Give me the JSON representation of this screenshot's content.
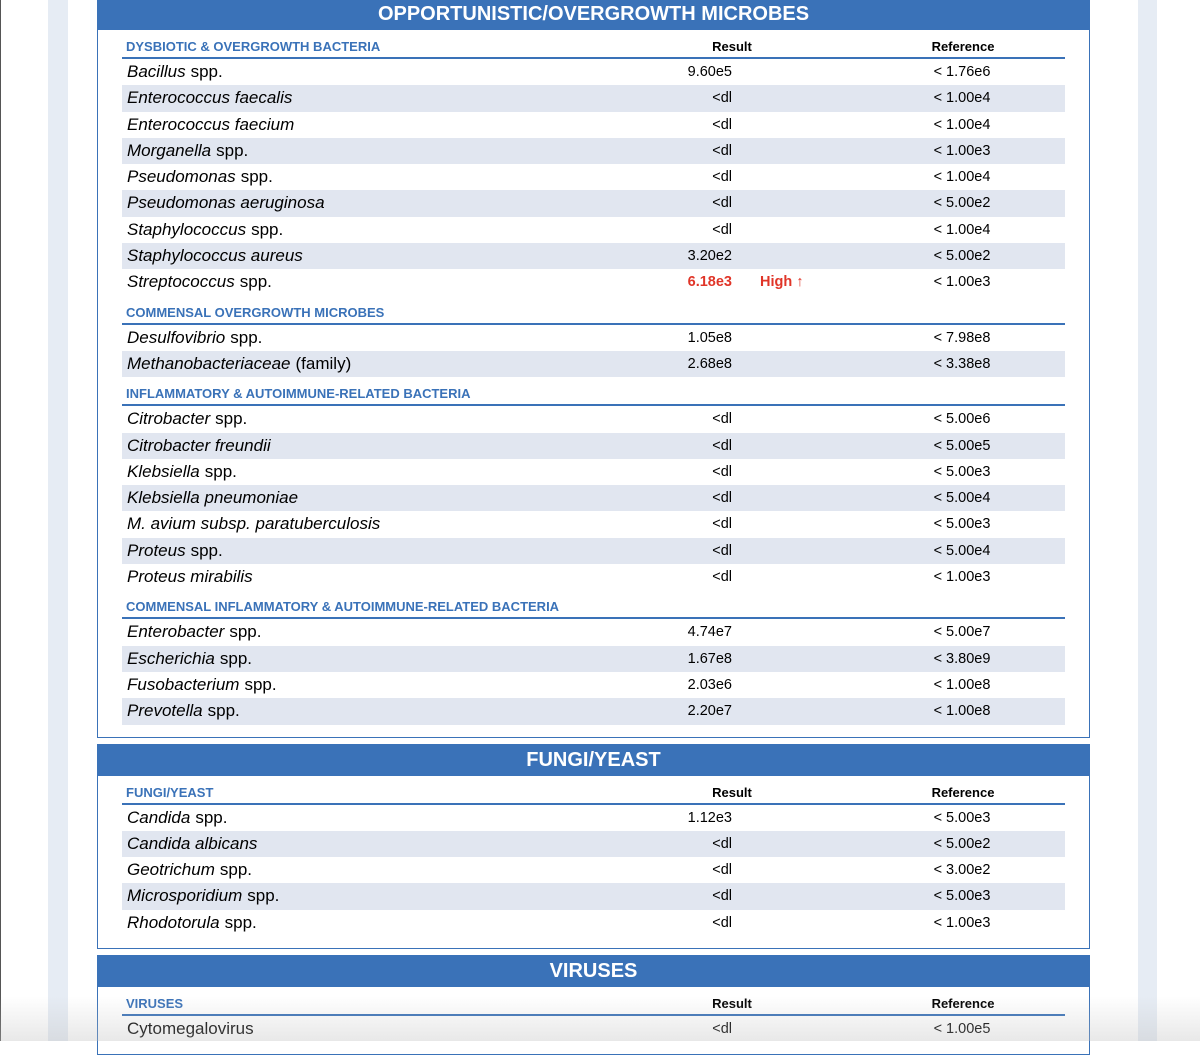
{
  "sections": [
    {
      "title": "OPPORTUNISTIC/OVERGROWTH MICROBES",
      "groups": [
        {
          "heading": "DYSBIOTIC & OVERGROWTH BACTERIA",
          "result_label": "Result",
          "reference_label": "Reference",
          "rows": [
            {
              "name": [
                {
                  "text": "Bacillus",
                  "italic": true
                },
                {
                  "text": "spp.",
                  "italic": false
                }
              ],
              "result": "9.60e5",
              "reference": "< 1.76e6"
            },
            {
              "name": [
                {
                  "text": "Enterococcus faecalis",
                  "italic": true
                }
              ],
              "result": "<dl",
              "reference": "< 1.00e4"
            },
            {
              "name": [
                {
                  "text": "Enterococcus faecium",
                  "italic": true
                }
              ],
              "result": "<dl",
              "reference": "< 1.00e4"
            },
            {
              "name": [
                {
                  "text": "Morganella",
                  "italic": true
                },
                {
                  "text": "spp.",
                  "italic": false
                }
              ],
              "result": "<dl",
              "reference": "< 1.00e3"
            },
            {
              "name": [
                {
                  "text": "Pseudomonas",
                  "italic": true
                },
                {
                  "text": "spp.",
                  "italic": false
                }
              ],
              "result": "<dl",
              "reference": "< 1.00e4"
            },
            {
              "name": [
                {
                  "text": "Pseudomonas aeruginosa",
                  "italic": true
                }
              ],
              "result": "<dl",
              "reference": "< 5.00e2"
            },
            {
              "name": [
                {
                  "text": "Staphylococcus",
                  "italic": true
                },
                {
                  "text": "spp.",
                  "italic": false
                }
              ],
              "result": "<dl",
              "reference": "< 1.00e4"
            },
            {
              "name": [
                {
                  "text": "Staphylococcus aureus",
                  "italic": true
                }
              ],
              "result": "3.20e2",
              "reference": "< 5.00e2"
            },
            {
              "name": [
                {
                  "text": "Streptococcus",
                  "italic": true
                },
                {
                  "text": "spp.",
                  "italic": false
                }
              ],
              "result": "6.18e3",
              "flag": "High ↑",
              "reference": "< 1.00e3"
            }
          ]
        },
        {
          "heading": "COMMENSAL OVERGROWTH MICROBES",
          "rows": [
            {
              "name": [
                {
                  "text": "Desulfovibrio",
                  "italic": true
                },
                {
                  "text": "spp.",
                  "italic": false
                }
              ],
              "result": "1.05e8",
              "reference": "< 7.98e8"
            },
            {
              "name": [
                {
                  "text": "Methanobacteriaceae",
                  "italic": true
                },
                {
                  "text": "(family)",
                  "italic": false
                }
              ],
              "result": "2.68e8",
              "reference": "< 3.38e8"
            }
          ]
        },
        {
          "heading": "INFLAMMATORY & AUTOIMMUNE-RELATED BACTERIA",
          "rows": [
            {
              "name": [
                {
                  "text": "Citrobacter",
                  "italic": true
                },
                {
                  "text": "spp.",
                  "italic": false
                }
              ],
              "result": "<dl",
              "reference": "< 5.00e6"
            },
            {
              "name": [
                {
                  "text": "Citrobacter freundii",
                  "italic": true
                }
              ],
              "result": "<dl",
              "reference": "< 5.00e5"
            },
            {
              "name": [
                {
                  "text": "Klebsiella",
                  "italic": true
                },
                {
                  "text": "spp.",
                  "italic": false
                }
              ],
              "result": "<dl",
              "reference": "< 5.00e3"
            },
            {
              "name": [
                {
                  "text": "Klebsiella pneumoniae",
                  "italic": true
                }
              ],
              "result": "<dl",
              "reference": "< 5.00e4"
            },
            {
              "name": [
                {
                  "text": "M. avium subsp. paratuberculosis",
                  "italic": true
                }
              ],
              "result": "<dl",
              "reference": "< 5.00e3"
            },
            {
              "name": [
                {
                  "text": "Proteus",
                  "italic": true
                },
                {
                  "text": "spp.",
                  "italic": false
                }
              ],
              "result": "<dl",
              "reference": "< 5.00e4"
            },
            {
              "name": [
                {
                  "text": "Proteus mirabilis",
                  "italic": true
                }
              ],
              "result": "<dl",
              "reference": "< 1.00e3"
            }
          ]
        },
        {
          "heading": "COMMENSAL INFLAMMATORY & AUTOIMMUNE-RELATED BACTERIA",
          "rows": [
            {
              "name": [
                {
                  "text": "Enterobacter",
                  "italic": true
                },
                {
                  "text": "spp.",
                  "italic": false
                }
              ],
              "result": "4.74e7",
              "reference": "< 5.00e7"
            },
            {
              "name": [
                {
                  "text": "Escherichia",
                  "italic": true
                },
                {
                  "text": "spp.",
                  "italic": false
                }
              ],
              "result": "1.67e8",
              "reference": "< 3.80e9"
            },
            {
              "name": [
                {
                  "text": "Fusobacterium",
                  "italic": true
                },
                {
                  "text": "spp.",
                  "italic": false
                }
              ],
              "result": "2.03e6",
              "reference": "< 1.00e8"
            },
            {
              "name": [
                {
                  "text": "Prevotella",
                  "italic": true
                },
                {
                  "text": "spp.",
                  "italic": false
                }
              ],
              "result": "2.20e7",
              "reference": "< 1.00e8"
            }
          ]
        }
      ]
    },
    {
      "title": "FUNGI/YEAST",
      "groups": [
        {
          "heading": "FUNGI/YEAST",
          "result_label": "Result",
          "reference_label": "Reference",
          "rows": [
            {
              "name": [
                {
                  "text": "Candida",
                  "italic": true
                },
                {
                  "text": "spp.",
                  "italic": false
                }
              ],
              "result": "1.12e3",
              "reference": "< 5.00e3"
            },
            {
              "name": [
                {
                  "text": "Candida albicans",
                  "italic": true
                }
              ],
              "result": "<dl",
              "reference": "< 5.00e2"
            },
            {
              "name": [
                {
                  "text": "Geotrichum",
                  "italic": true
                },
                {
                  "text": "spp.",
                  "italic": false
                }
              ],
              "result": "<dl",
              "reference": "< 3.00e2"
            },
            {
              "name": [
                {
                  "text": "Microsporidium",
                  "italic": true
                },
                {
                  "text": "spp.",
                  "italic": false
                }
              ],
              "result": "<dl",
              "reference": "< 5.00e3"
            },
            {
              "name": [
                {
                  "text": "Rhodotorula",
                  "italic": true
                },
                {
                  "text": "spp.",
                  "italic": false
                }
              ],
              "result": "<dl",
              "reference": "< 1.00e3"
            }
          ]
        }
      ]
    },
    {
      "title": "VIRUSES",
      "groups": [
        {
          "heading": "VIRUSES",
          "result_label": "Result",
          "reference_label": "Reference",
          "rows": [
            {
              "name": [
                {
                  "text": "Cytomegalovirus",
                  "italic": false
                }
              ],
              "result": "<dl",
              "reference": "< 1.00e5"
            }
          ]
        }
      ]
    }
  ]
}
